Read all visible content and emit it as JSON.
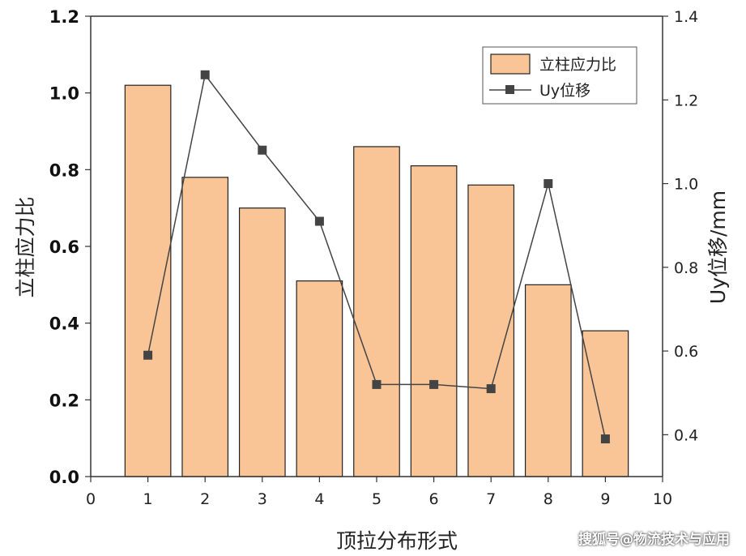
{
  "chart_data": {
    "type": "bar",
    "x": [
      1,
      2,
      3,
      4,
      5,
      6,
      7,
      8,
      9
    ],
    "series": [
      {
        "name": "立柱应力比",
        "kind": "bar",
        "axis": "left",
        "values": [
          1.02,
          0.78,
          0.7,
          0.51,
          0.86,
          0.81,
          0.76,
          0.5,
          0.38
        ]
      },
      {
        "name": "Uy位移",
        "kind": "line",
        "axis": "right",
        "marker": "square",
        "values": [
          0.59,
          1.26,
          1.08,
          0.91,
          0.52,
          0.52,
          0.51,
          1.0,
          0.39
        ]
      }
    ],
    "xlabel": "顶拉分布形式",
    "ylabel": "立柱应力比",
    "y2label": "Uy位移/mm",
    "xlim": [
      0,
      10
    ],
    "ylim": [
      0,
      1.2
    ],
    "y2lim": [
      0.3,
      1.4
    ],
    "xticks": [
      "0",
      "1",
      "2",
      "3",
      "4",
      "5",
      "6",
      "7",
      "8",
      "9",
      "10"
    ],
    "yticks": [
      "0.0",
      "0.2",
      "0.4",
      "0.6",
      "0.8",
      "1.0",
      "1.2"
    ],
    "y2ticks": [
      "0.4",
      "0.6",
      "0.8",
      "1.0",
      "1.2",
      "1.4"
    ],
    "legend": [
      "立柱应力比",
      "Uy位移"
    ],
    "legend_position": "top-right",
    "grid": false,
    "colors": {
      "bar_fill": "#f9c597",
      "bar_edge": "#222222",
      "line": "#444444",
      "marker": "#444444"
    }
  },
  "watermark": "搜狐号@物流技术与应用"
}
